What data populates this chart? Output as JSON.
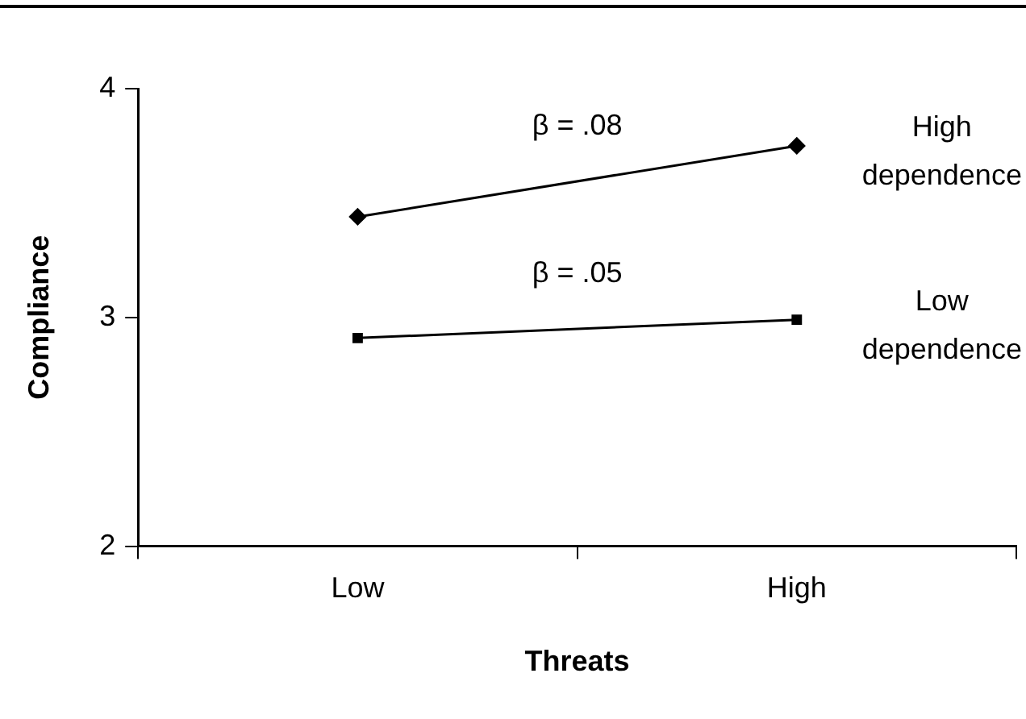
{
  "chart_data": {
    "type": "line",
    "xlabel": "Threats",
    "ylabel": "Compliance",
    "categories": [
      "Low",
      "High"
    ],
    "series": [
      {
        "name": "High dependence",
        "color": "#000000",
        "marker": "diamond",
        "values": [
          3.44,
          3.75
        ]
      },
      {
        "name": "Low dependence",
        "color": "#000000",
        "marker": "square",
        "values": [
          2.91,
          2.99
        ]
      }
    ],
    "annotations": [
      "β = .08",
      "β = .05"
    ],
    "ylim": [
      2,
      4
    ],
    "yticks": [
      2,
      3,
      4
    ],
    "grid": false,
    "legend": false
  }
}
